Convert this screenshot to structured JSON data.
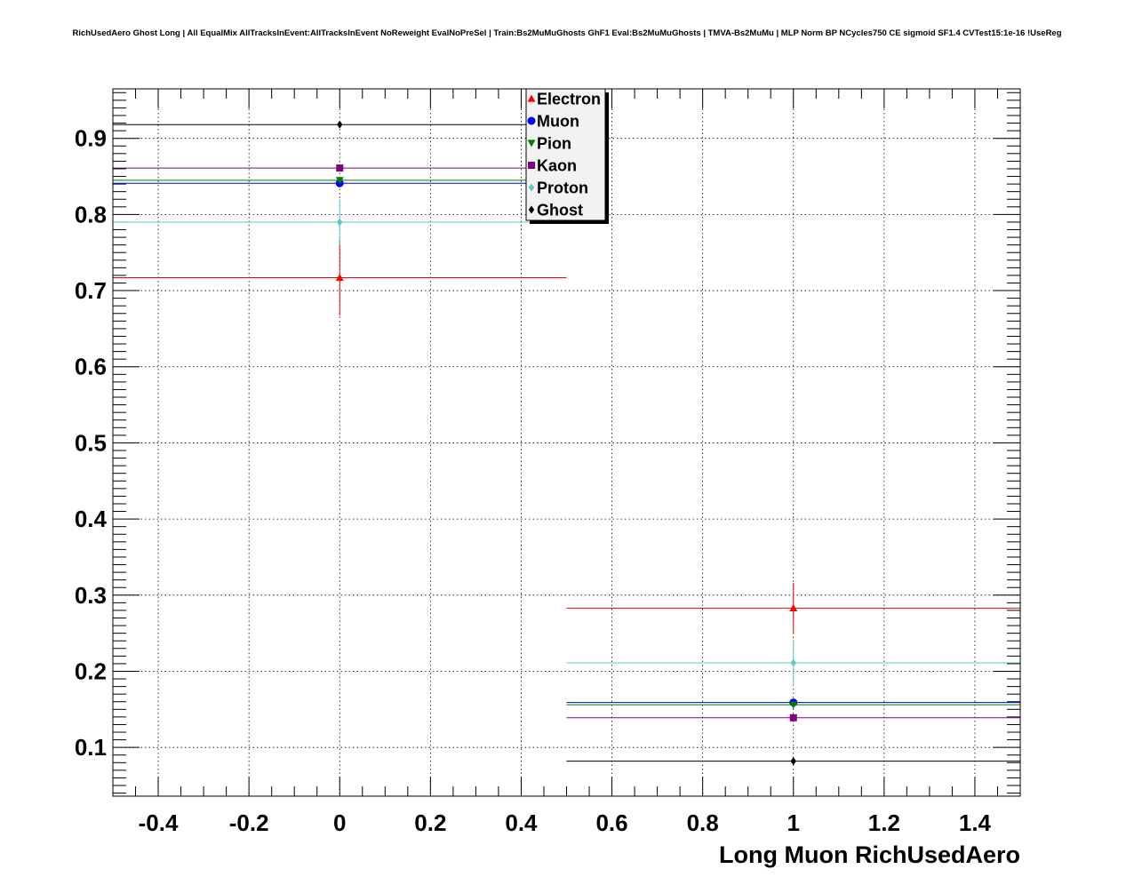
{
  "chart_data": {
    "type": "scatter",
    "title": "RichUsedAero Ghost Long | All EqualMix AllTracksInEvent:AllTracksInEvent NoReweight EvalNoPreSel | Train:Bs2MuMuGhosts GhF1 Eval:Bs2MuMuGhosts | TMVA-Bs2MuMu | MLP Norm BP NCycles750 CE sigmoid SF1.4 CVTest15:1e-16 !UseReg",
    "xlabel": "Long Muon RichUsedAero",
    "ylabel": "",
    "xlim": [
      -0.5,
      1.5
    ],
    "ylim": [
      0.036,
      0.965
    ],
    "grid": true,
    "x_ticks": [
      -0.4,
      -0.2,
      0,
      0.2,
      0.4,
      0.6,
      0.8,
      1,
      1.2,
      1.4
    ],
    "x_tick_labels": [
      "-0.4",
      "-0.2",
      "0",
      "0.2",
      "0.4",
      "0.6",
      "0.8",
      "1",
      "1.2",
      "1.4"
    ],
    "y_ticks": [
      0.1,
      0.2,
      0.3,
      0.4,
      0.5,
      0.6,
      0.7,
      0.8,
      0.9
    ],
    "y_tick_labels": [
      "0.1",
      "0.2",
      "0.3",
      "0.4",
      "0.5",
      "0.6",
      "0.7",
      "0.8",
      "0.9"
    ],
    "legend_position": "top-center",
    "series": [
      {
        "name": "Electron",
        "color": "#ff0000",
        "marker": "triangle-up",
        "points": [
          {
            "x": 0,
            "xlo": -0.5,
            "xhi": 0.5,
            "y": 0.717,
            "ylo": 0.667,
            "yhi": 0.767
          },
          {
            "x": 1,
            "xlo": 0.5,
            "xhi": 1.5,
            "y": 0.283,
            "ylo": 0.25,
            "yhi": 0.316
          }
        ]
      },
      {
        "name": "Muon",
        "color": "#0000ff",
        "marker": "circle",
        "points": [
          {
            "x": 0,
            "xlo": -0.5,
            "xhi": 0.5,
            "y": 0.841,
            "ylo": 0.837,
            "yhi": 0.845
          },
          {
            "x": 1,
            "xlo": 0.5,
            "xhi": 1.5,
            "y": 0.159,
            "ylo": 0.155,
            "yhi": 0.163
          }
        ]
      },
      {
        "name": "Pion",
        "color": "#008000",
        "marker": "triangle-down",
        "points": [
          {
            "x": 0,
            "xlo": -0.5,
            "xhi": 0.5,
            "y": 0.845,
            "ylo": 0.843,
            "yhi": 0.847
          },
          {
            "x": 1,
            "xlo": 0.5,
            "xhi": 1.5,
            "y": 0.156,
            "ylo": 0.154,
            "yhi": 0.158
          }
        ]
      },
      {
        "name": "Kaon",
        "color": "#800080",
        "marker": "square",
        "points": [
          {
            "x": 0,
            "xlo": -0.5,
            "xhi": 0.5,
            "y": 0.861,
            "ylo": 0.859,
            "yhi": 0.863
          },
          {
            "x": 1,
            "xlo": 0.5,
            "xhi": 1.5,
            "y": 0.139,
            "ylo": 0.137,
            "yhi": 0.141
          }
        ]
      },
      {
        "name": "Proton",
        "color": "#5fc8c8",
        "marker": "diamond",
        "points": [
          {
            "x": 0,
            "xlo": -0.5,
            "xhi": 0.5,
            "y": 0.79,
            "ylo": 0.76,
            "yhi": 0.82
          },
          {
            "x": 1,
            "xlo": 0.5,
            "xhi": 1.5,
            "y": 0.211,
            "ylo": 0.181,
            "yhi": 0.241
          }
        ]
      },
      {
        "name": "Ghost",
        "color": "#000000",
        "marker": "diamond",
        "points": [
          {
            "x": 0,
            "xlo": -0.5,
            "xhi": 0.5,
            "y": 0.918,
            "ylo": 0.916,
            "yhi": 0.92
          },
          {
            "x": 1,
            "xlo": 0.5,
            "xhi": 1.5,
            "y": 0.082,
            "ylo": 0.08,
            "yhi": 0.084
          }
        ]
      }
    ]
  }
}
